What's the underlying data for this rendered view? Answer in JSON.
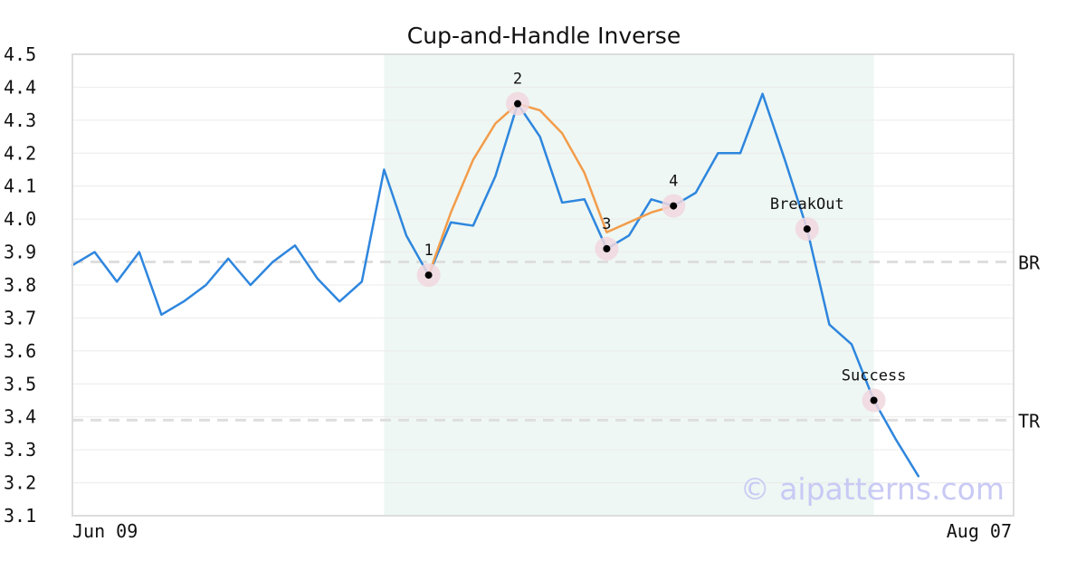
{
  "chart_data": {
    "type": "line",
    "title": "Cup-and-Handle Inverse",
    "xlabel": "",
    "ylabel": "",
    "ylim": [
      3.1,
      4.5
    ],
    "yticks": [
      "4.5",
      "4.4",
      "4.3",
      "4.2",
      "4.1",
      "4.0",
      "3.9",
      "3.8",
      "3.7",
      "3.6",
      "3.5",
      "3.4",
      "3.3",
      "3.2",
      "3.1"
    ],
    "x_tick_labels": {
      "start": "Jun 09",
      "end": "Aug 07"
    },
    "grid": "horizontal",
    "x_count": 40,
    "series": [
      {
        "color": "#2e86de",
        "x": [
          0,
          1,
          2,
          3,
          4,
          5,
          6,
          7,
          8,
          9,
          10,
          11,
          12,
          13,
          14,
          15,
          16,
          17,
          18,
          19,
          20,
          21,
          22,
          23,
          24,
          25,
          26,
          27,
          28,
          29,
          30,
          31,
          32,
          33,
          34,
          35,
          36,
          37,
          38
        ],
        "values": [
          3.86,
          3.9,
          3.81,
          3.9,
          3.71,
          3.75,
          3.8,
          3.88,
          3.8,
          3.87,
          3.92,
          3.82,
          3.75,
          3.81,
          4.15,
          3.95,
          3.83,
          3.99,
          3.98,
          4.13,
          4.35,
          4.25,
          4.05,
          4.06,
          3.91,
          3.95,
          4.06,
          4.04,
          4.08,
          4.2,
          4.2,
          4.38,
          4.18,
          3.97,
          3.68,
          3.62,
          3.45,
          3.33,
          3.22
        ]
      },
      {
        "color": "#f39c4a",
        "x": [
          16,
          17,
          18,
          19,
          20,
          21,
          22,
          23,
          24,
          25,
          26,
          27
        ],
        "values": [
          3.83,
          4.02,
          4.18,
          4.29,
          4.35,
          4.33,
          4.26,
          4.14,
          3.96,
          3.99,
          4.02,
          4.04
        ]
      }
    ],
    "reference_lines": [
      {
        "label": "BR",
        "value": 3.87
      },
      {
        "label": "TR",
        "value": 3.39
      }
    ],
    "highlight_range": {
      "from": 14,
      "to": 36,
      "color": "#eef7f3"
    },
    "annotations": [
      {
        "label": "1",
        "x": 16,
        "y": 3.83
      },
      {
        "label": "2",
        "x": 20,
        "y": 4.35
      },
      {
        "label": "3",
        "x": 24,
        "y": 3.91
      },
      {
        "label": "4",
        "x": 27,
        "y": 4.04
      },
      {
        "label": "BreakOut",
        "x": 33,
        "y": 3.97
      },
      {
        "label": "Success",
        "x": 36,
        "y": 3.45
      }
    ]
  },
  "watermark": "© aipatterns.com"
}
